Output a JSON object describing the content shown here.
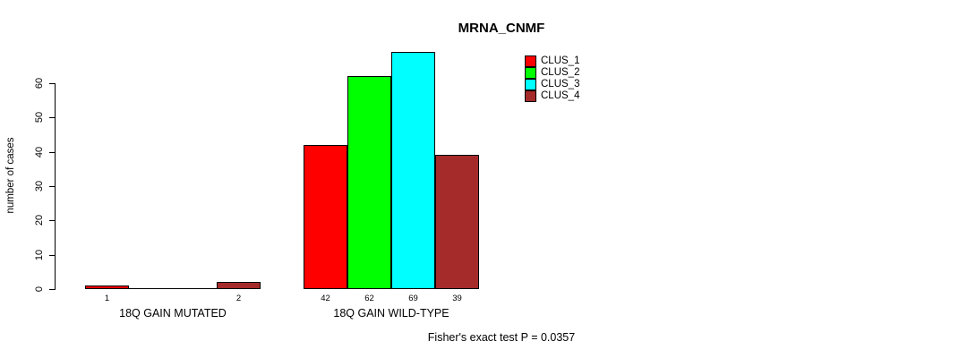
{
  "chart_data": {
    "type": "bar",
    "title": "MRNA_CNMF",
    "ylabel": "number of cases",
    "xlabel": "",
    "ylim": [
      0,
      60
    ],
    "yticks": [
      0,
      10,
      20,
      30,
      40,
      50,
      60
    ],
    "grid": false,
    "legend_position": "top-right",
    "categories": [
      "18Q GAIN MUTATED",
      "18Q GAIN WILD-TYPE"
    ],
    "series": [
      {
        "name": "CLUS_1",
        "color": "#ff0000",
        "values": [
          1,
          42
        ]
      },
      {
        "name": "CLUS_2",
        "color": "#00ff00",
        "values": [
          0,
          62
        ]
      },
      {
        "name": "CLUS_3",
        "color": "#00ffff",
        "values": [
          0,
          69
        ]
      },
      {
        "name": "CLUS_4",
        "color": "#a52a2a",
        "values": [
          2,
          39
        ]
      }
    ],
    "bar_count_labels": [
      [
        "1",
        "",
        "",
        "2"
      ],
      [
        "42",
        "62",
        "69",
        "39"
      ]
    ],
    "annotation": "Fisher's exact test P = 0.0357"
  },
  "colors": {
    "background": "#ffffff",
    "axis": "#000000",
    "bar_border": "#000000",
    "text": "#000000"
  }
}
